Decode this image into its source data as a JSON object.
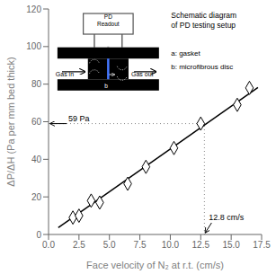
{
  "chart_data": {
    "type": "scatter",
    "xlabel": "Face velocity of N₂ at r.t. (cm/s)",
    "ylabel": "ΔP/ΔH (Pa per mm bed thick)",
    "xlim": [
      0,
      17.5
    ],
    "xticks": [
      {
        "value": 0,
        "label": "0.0"
      },
      2.5,
      {
        "value": 5,
        "label": "5.0"
      },
      7.5,
      {
        "value": 10,
        "label": "10.0"
      },
      12.5,
      {
        "value": 15,
        "label": "15.0"
      },
      17.5
    ],
    "ylim": [
      0,
      120
    ],
    "yticks": [
      0,
      20,
      40,
      60,
      80,
      100,
      120
    ],
    "grid": false,
    "series": [
      {
        "type": "scatter",
        "marker": "diamond",
        "color": "black",
        "x": [
          2.0,
          2.5,
          3.5,
          4.2,
          6.5,
          8.0,
          10.3,
          12.5,
          15.5,
          16.5
        ],
        "values": [
          9,
          10,
          18,
          17,
          27,
          36,
          46,
          59,
          69,
          78
        ]
      },
      {
        "type": "line",
        "color": "black",
        "x": [
          0.8,
          17.2
        ],
        "values": [
          3.64,
          78.26
        ]
      }
    ],
    "annotations": [
      {
        "text": "59 Pa",
        "y": 59,
        "color": "#888888",
        "line_style": "dotted"
      },
      {
        "text": "12.8 cm/s",
        "x": 12.8,
        "color": "#888888",
        "line_style": "dotted"
      }
    ],
    "schematic": {
      "title": "Schematic diagram\nof PD testing setup",
      "notes": [
        "a: gasket",
        "b: microfibrous disc"
      ],
      "labels": {
        "readout": "PD\nReadout",
        "inlet": "Gas in",
        "outlet": "Gas out",
        "disc": "b"
      },
      "color": "#4477ff"
    }
  }
}
